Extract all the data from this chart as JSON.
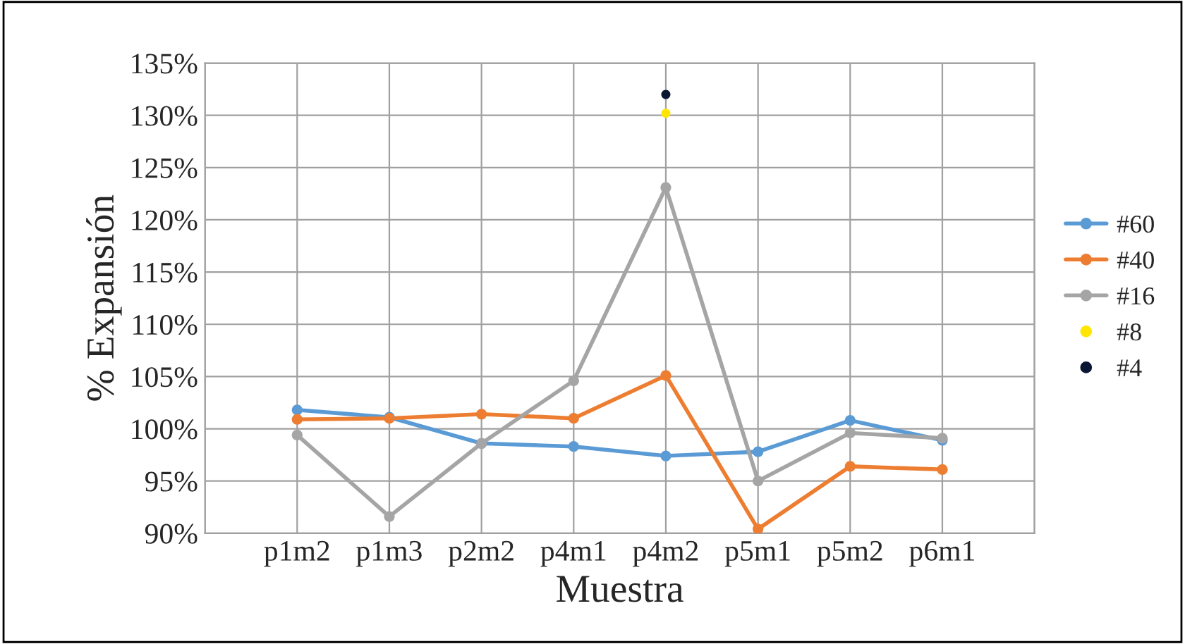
{
  "chart_data": {
    "type": "line",
    "xlabel": "Muestra",
    "ylabel": "% Expansión",
    "categories": [
      null,
      "p1m2",
      "p1m3",
      "p2m2",
      "p4m1",
      "p4m2",
      "p5m1",
      "p5m2",
      "p6m1",
      null
    ],
    "series": [
      {
        "name": "#60",
        "color": "#5b9bd5",
        "values": [
          null,
          101.8,
          101.1,
          98.6,
          98.3,
          97.4,
          97.8,
          100.8,
          98.9,
          null
        ]
      },
      {
        "name": "#40",
        "color": "#ed7d31",
        "values": [
          null,
          100.9,
          101.0,
          101.4,
          101.0,
          105.1,
          90.4,
          96.4,
          96.1,
          null
        ]
      },
      {
        "name": "#16",
        "color": "#a5a5a5",
        "values": [
          null,
          99.4,
          91.6,
          98.6,
          104.6,
          123.1,
          95.0,
          99.6,
          99.1,
          null
        ]
      },
      {
        "name": "#8",
        "type": "scatter",
        "color": "#ffe600",
        "values": [
          null,
          null,
          null,
          null,
          null,
          130.2,
          null,
          null,
          null,
          null
        ]
      },
      {
        "name": "#4",
        "type": "scatter",
        "color": "#0a1633",
        "values": [
          null,
          null,
          null,
          null,
          null,
          132.0,
          null,
          null,
          null,
          null
        ]
      }
    ],
    "ylim": [
      90,
      135
    ],
    "yticks": [
      {
        "value": 90,
        "label": "90%"
      },
      {
        "value": 95,
        "label": "95%"
      },
      {
        "value": 100,
        "label": "100%"
      },
      {
        "value": 105,
        "label": "105%"
      },
      {
        "value": 110,
        "label": "110%"
      },
      {
        "value": 115,
        "label": "115%"
      },
      {
        "value": 120,
        "label": "120%"
      },
      {
        "value": 125,
        "label": "125%"
      },
      {
        "value": 130,
        "label": "130%"
      },
      {
        "value": 135,
        "label": "135%"
      }
    ],
    "grid": true,
    "legend": "right",
    "marker": "circle"
  }
}
